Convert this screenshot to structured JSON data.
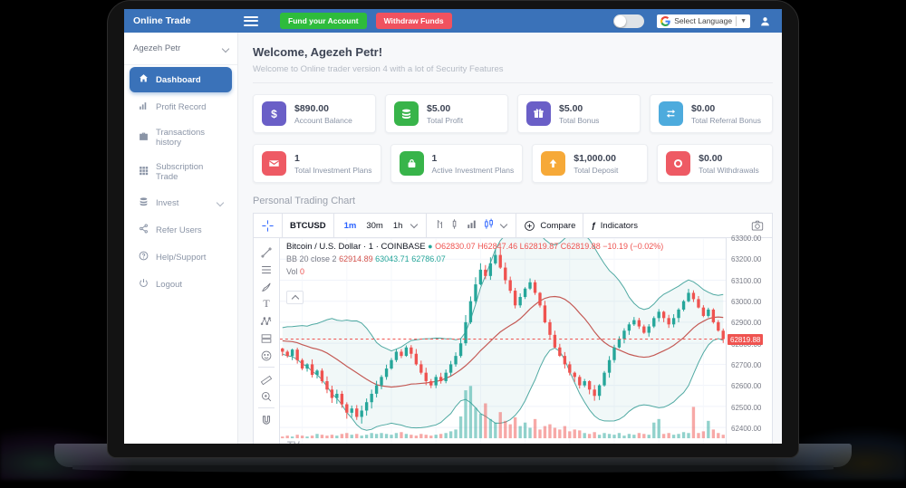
{
  "topbar": {
    "brand": "Online Trade",
    "fund_button": "Fund your Account",
    "withdraw_button": "Withdraw Funds",
    "language_label": "Select Language",
    "accent_blue": "#3a72b9",
    "button_green": "#2ebc3c",
    "button_red": "#f0525f"
  },
  "sidebar": {
    "user": "Agezeh Petr",
    "items": [
      {
        "label": "Dashboard",
        "icon": "home-icon",
        "active": true
      },
      {
        "label": "Profit Record",
        "icon": "bar-chart-icon",
        "active": false
      },
      {
        "label": "Transactions history",
        "icon": "briefcase-icon",
        "active": false
      },
      {
        "label": "Subscription Trade",
        "icon": "grid-icon",
        "active": false
      },
      {
        "label": "Invest",
        "icon": "coins-icon",
        "active": false,
        "has_submenu": true
      },
      {
        "label": "Refer Users",
        "icon": "share-icon",
        "active": false
      },
      {
        "label": "Help/Support",
        "icon": "help-icon",
        "active": false
      },
      {
        "label": "Logout",
        "icon": "power-icon",
        "active": false
      }
    ]
  },
  "welcome": {
    "title": "Welcome, Agezeh Petr!",
    "subtitle": "Welcome to Online trader version 4 with a lot of Security Features"
  },
  "stats": [
    {
      "value": "$890.00",
      "label": "Account Balance",
      "icon": "dollar-icon",
      "color": "#6a5fc7"
    },
    {
      "value": "$5.00",
      "label": "Total Profit",
      "icon": "coins-icon",
      "color": "#38b44a"
    },
    {
      "value": "$5.00",
      "label": "Total Bonus",
      "icon": "gift-icon",
      "color": "#6a5fc7"
    },
    {
      "value": "$0.00",
      "label": "Total Referral Bonus",
      "icon": "swap-icon",
      "color": "#4dabdd"
    },
    {
      "value": "1",
      "label": "Total Investment Plans",
      "icon": "envelope-icon",
      "color": "#ee5a64"
    },
    {
      "value": "1",
      "label": "Active Investment Plans",
      "icon": "bag-icon",
      "color": "#38b44a"
    },
    {
      "value": "$1,000.00",
      "label": "Total Deposit",
      "icon": "up-arrow-icon",
      "color": "#f6a938"
    },
    {
      "value": "$0.00",
      "label": "Total Withdrawals",
      "icon": "ring-icon",
      "color": "#ee5a64"
    }
  ],
  "section_title": "Personal Trading Chart",
  "chart": {
    "toolbar": {
      "symbol": "BTCUSD",
      "intervals": [
        "1m",
        "30m",
        "1h"
      ],
      "selected_interval": "1m",
      "compare_label": "Compare",
      "indicators_label": "Indicators",
      "fx_glyph": "ƒ"
    },
    "legend": {
      "title": "Bitcoin / U.S. Dollar · 1 · COINBASE",
      "status_dot": "●",
      "ohlc": "O62830.07 H62847.46 L62819.87 C62819.88 −10.19 (−0.02%)",
      "bb_label": "BB 20 close 2",
      "bb_values": [
        "62914.89",
        "63043.71",
        "62786.07"
      ],
      "vol_label": "Vol",
      "vol_value": "0"
    },
    "logo": "TV"
  },
  "chart_data": {
    "type": "candlestick",
    "symbol": "BTCUSD",
    "exchange": "COINBASE",
    "y_top": 63300,
    "y_bottom": 62400,
    "y_ticks": [
      "63300.00",
      "63200.00",
      "63100.00",
      "63000.00",
      "62900.00",
      "62800.00",
      "62700.00",
      "62600.00",
      "62500.00",
      "62400.00"
    ],
    "last_price": 62819.88,
    "last_price_label": "62819.88",
    "up_color": "#26a69a",
    "down_color": "#ef5350",
    "band_color": "#4fa9a2",
    "basis_color": "#c45a55",
    "indicator": "Bollinger Bands (20, close, 2)",
    "closes": [
      62760,
      62740,
      62770,
      62720,
      62680,
      62700,
      62650,
      62670,
      62620,
      62580,
      62540,
      62560,
      62510,
      62470,
      62490,
      62450,
      62480,
      62520,
      62560,
      62600,
      62640,
      62680,
      62720,
      62760,
      62740,
      62780,
      62750,
      62700,
      62660,
      62620,
      62600,
      62640,
      62620,
      62660,
      62700,
      62740,
      62800,
      62900,
      63000,
      63080,
      63150,
      63120,
      63180,
      63220,
      63160,
      63100,
      63050,
      62980,
      63020,
      63060,
      63090,
      63040,
      62980,
      62900,
      62840,
      62780,
      62740,
      62700,
      62660,
      62640,
      62600,
      62620,
      62580,
      62550,
      62600,
      62660,
      62720,
      62780,
      62820,
      62860,
      62890,
      62910,
      62880,
      62850,
      62880,
      62920,
      62950,
      62920,
      62890,
      62920,
      62960,
      63000,
      63040,
      63010,
      62970,
      62930,
      62960,
      62900,
      62860,
      62820
    ],
    "volumes": [
      2,
      3,
      2,
      4,
      3,
      2,
      3,
      5,
      4,
      3,
      4,
      3,
      5,
      6,
      4,
      5,
      3,
      4,
      6,
      5,
      6,
      5,
      4,
      6,
      7,
      5,
      4,
      3,
      5,
      4,
      3,
      4,
      5,
      6,
      8,
      10,
      25,
      55,
      60,
      35,
      28,
      40,
      22,
      18,
      30,
      20,
      16,
      24,
      14,
      18,
      12,
      22,
      10,
      14,
      16,
      12,
      10,
      14,
      8,
      10,
      9,
      6,
      5,
      7,
      4,
      6,
      5,
      4,
      6,
      3,
      5,
      4,
      6,
      5,
      4,
      18,
      22,
      5,
      6,
      4,
      5,
      7,
      6,
      36,
      6,
      8,
      20,
      10,
      6,
      4
    ]
  }
}
